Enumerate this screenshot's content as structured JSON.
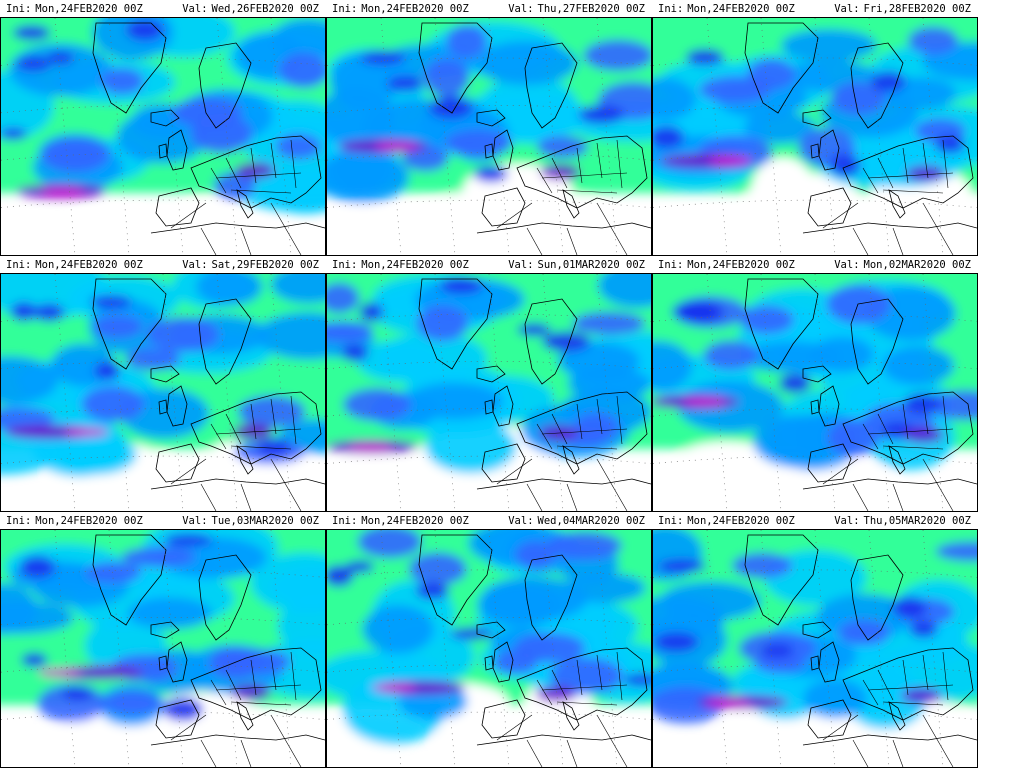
{
  "labels": {
    "ini": "Ini:",
    "val": "Val:"
  },
  "colors": {
    "light_green": "#33ff99",
    "cyan": "#00ccff",
    "sky_blue": "#0099ff",
    "blue": "#3366ff",
    "deep_blue": "#1a33ee",
    "purple": "#6600cc",
    "magenta": "#cc00cc",
    "coast": "#000000"
  },
  "panels": [
    {
      "ini": "Mon,24FEB2020 00Z",
      "valid": "Wed,26FEB2020 00Z"
    },
    {
      "ini": "Mon,24FEB2020 00Z",
      "valid": "Thu,27FEB2020 00Z"
    },
    {
      "ini": "Mon,24FEB2020 00Z",
      "valid": "Fri,28FEB2020 00Z"
    },
    {
      "ini": "Mon,24FEB2020 00Z",
      "valid": "Sat,29FEB2020 00Z"
    },
    {
      "ini": "Mon,24FEB2020 00Z",
      "valid": "Sun,01MAR2020 00Z"
    },
    {
      "ini": "Mon,24FEB2020 00Z",
      "valid": "Mon,02MAR2020 00Z"
    },
    {
      "ini": "Mon,24FEB2020 00Z",
      "valid": "Tue,03MAR2020 00Z"
    },
    {
      "ini": "Mon,24FEB2020 00Z",
      "valid": "Wed,04MAR2020 00Z"
    },
    {
      "ini": "Mon,24FEB2020 00Z",
      "valid": "Thu,05MAR2020 00Z"
    }
  ]
}
